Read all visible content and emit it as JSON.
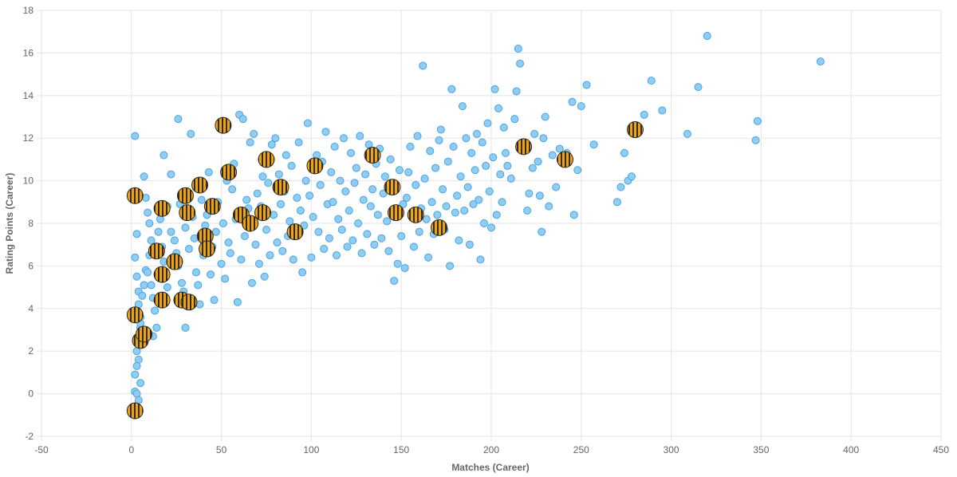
{
  "chart_data": {
    "type": "scatter",
    "title": "",
    "xlabel": "Matches (Career)",
    "ylabel": "Rating Points (Career)",
    "xlim": [
      -50,
      450
    ],
    "ylim": [
      -2,
      18
    ],
    "x_ticks": [
      -50,
      0,
      50,
      100,
      150,
      200,
      250,
      300,
      350,
      400,
      450
    ],
    "y_ticks": [
      -2,
      0,
      2,
      4,
      6,
      8,
      10,
      12,
      14,
      16,
      18
    ],
    "grid": true,
    "legend": "none",
    "colors": {
      "players": "#8fcdf5",
      "players_edge": "#4aa3df",
      "highlight_fill": "#f0a30a",
      "highlight_stripe": "#2b2b2b",
      "grid": "#e5e5e5",
      "text": "#666666"
    },
    "series": [
      {
        "points": [
          [
            2,
            12.1
          ],
          [
            3,
            7.5
          ],
          [
            2,
            6.4
          ],
          [
            3,
            5.5
          ],
          [
            4,
            4.8
          ],
          [
            4,
            4.2
          ],
          [
            5,
            3.6
          ],
          [
            5,
            3.1
          ],
          [
            6,
            2.8
          ],
          [
            6,
            2.3
          ],
          [
            4,
            1.6
          ],
          [
            3,
            1.3
          ],
          [
            2,
            0.9
          ],
          [
            2,
            0.1
          ],
          [
            3,
            0.0
          ],
          [
            4,
            -0.3
          ],
          [
            5,
            0.5
          ],
          [
            3,
            2.0
          ],
          [
            4,
            2.6
          ],
          [
            5,
            3.3
          ],
          [
            6,
            4.6
          ],
          [
            7,
            5.1
          ],
          [
            8,
            5.8
          ],
          [
            7,
            10.2
          ],
          [
            8,
            9.2
          ],
          [
            9,
            8.5
          ],
          [
            10,
            8.0
          ],
          [
            11,
            7.2
          ],
          [
            10,
            6.5
          ],
          [
            9,
            5.7
          ],
          [
            11,
            5.1
          ],
          [
            12,
            4.5
          ],
          [
            13,
            3.9
          ],
          [
            14,
            3.1
          ],
          [
            12,
            2.7
          ],
          [
            15,
            7.6
          ],
          [
            16,
            8.2
          ],
          [
            17,
            6.9
          ],
          [
            18,
            6.2
          ],
          [
            19,
            5.5
          ],
          [
            20,
            5.0
          ],
          [
            18,
            11.2
          ],
          [
            20,
            8.8
          ],
          [
            22,
            10.3
          ],
          [
            22,
            7.6
          ],
          [
            24,
            7.2
          ],
          [
            25,
            6.6
          ],
          [
            26,
            6.0
          ],
          [
            26,
            12.9
          ],
          [
            27,
            8.9
          ],
          [
            28,
            5.2
          ],
          [
            29,
            4.8
          ],
          [
            30,
            3.1
          ],
          [
            30,
            7.8
          ],
          [
            31,
            9.5
          ],
          [
            32,
            6.8
          ],
          [
            33,
            12.2
          ],
          [
            34,
            8.3
          ],
          [
            35,
            7.3
          ],
          [
            36,
            5.7
          ],
          [
            37,
            5.1
          ],
          [
            38,
            4.2
          ],
          [
            39,
            9.1
          ],
          [
            40,
            6.5
          ],
          [
            41,
            7.9
          ],
          [
            42,
            8.4
          ],
          [
            43,
            10.4
          ],
          [
            44,
            5.6
          ],
          [
            45,
            6.9
          ],
          [
            46,
            4.4
          ],
          [
            47,
            7.6
          ],
          [
            48,
            9.0
          ],
          [
            49,
            12.6
          ],
          [
            50,
            6.1
          ],
          [
            51,
            8.0
          ],
          [
            52,
            5.4
          ],
          [
            53,
            10.0
          ],
          [
            54,
            7.1
          ],
          [
            55,
            6.6
          ],
          [
            56,
            9.6
          ],
          [
            57,
            10.8
          ],
          [
            58,
            8.2
          ],
          [
            59,
            4.3
          ],
          [
            60,
            13.1
          ],
          [
            61,
            6.3
          ],
          [
            62,
            12.9
          ],
          [
            63,
            7.4
          ],
          [
            64,
            9.1
          ],
          [
            65,
            8.7
          ],
          [
            66,
            11.8
          ],
          [
            67,
            5.2
          ],
          [
            68,
            12.2
          ],
          [
            69,
            7.0
          ],
          [
            70,
            9.4
          ],
          [
            71,
            6.1
          ],
          [
            72,
            8.8
          ],
          [
            73,
            10.2
          ],
          [
            74,
            5.5
          ],
          [
            75,
            7.7
          ],
          [
            76,
            9.9
          ],
          [
            77,
            6.5
          ],
          [
            78,
            11.7
          ],
          [
            79,
            8.4
          ],
          [
            80,
            12.0
          ],
          [
            81,
            7.1
          ],
          [
            82,
            10.3
          ],
          [
            83,
            8.9
          ],
          [
            84,
            6.7
          ],
          [
            85,
            9.5
          ],
          [
            86,
            11.2
          ],
          [
            87,
            7.4
          ],
          [
            88,
            8.1
          ],
          [
            89,
            10.7
          ],
          [
            90,
            6.3
          ],
          [
            92,
            9.2
          ],
          [
            93,
            11.8
          ],
          [
            94,
            8.6
          ],
          [
            95,
            5.7
          ],
          [
            96,
            7.9
          ],
          [
            97,
            10.0
          ],
          [
            98,
            12.7
          ],
          [
            99,
            9.3
          ],
          [
            100,
            6.4
          ],
          [
            101,
            8.3
          ],
          [
            103,
            11.2
          ],
          [
            104,
            7.6
          ],
          [
            105,
            9.8
          ],
          [
            106,
            10.9
          ],
          [
            107,
            6.8
          ],
          [
            108,
            12.3
          ],
          [
            109,
            8.9
          ],
          [
            110,
            7.3
          ],
          [
            111,
            10.4
          ],
          [
            112,
            9.0
          ],
          [
            113,
            11.6
          ],
          [
            114,
            6.5
          ],
          [
            115,
            8.2
          ],
          [
            116,
            10.0
          ],
          [
            117,
            7.7
          ],
          [
            118,
            12.0
          ],
          [
            119,
            9.5
          ],
          [
            120,
            6.9
          ],
          [
            121,
            8.6
          ],
          [
            122,
            11.3
          ],
          [
            123,
            7.2
          ],
          [
            124,
            9.9
          ],
          [
            125,
            10.6
          ],
          [
            126,
            8.0
          ],
          [
            127,
            12.1
          ],
          [
            128,
            6.6
          ],
          [
            129,
            9.1
          ],
          [
            130,
            10.3
          ],
          [
            131,
            7.5
          ],
          [
            132,
            11.7
          ],
          [
            133,
            8.8
          ],
          [
            134,
            9.6
          ],
          [
            135,
            7.0
          ],
          [
            136,
            10.8
          ],
          [
            137,
            8.4
          ],
          [
            138,
            11.5
          ],
          [
            139,
            7.3
          ],
          [
            140,
            9.4
          ],
          [
            141,
            10.2
          ],
          [
            142,
            8.1
          ],
          [
            143,
            6.7
          ],
          [
            144,
            11.0
          ],
          [
            145,
            8.6
          ],
          [
            146,
            5.3
          ],
          [
            147,
            9.7
          ],
          [
            148,
            6.1
          ],
          [
            149,
            10.5
          ],
          [
            150,
            7.4
          ],
          [
            151,
            8.9
          ],
          [
            152,
            5.9
          ],
          [
            153,
            9.2
          ],
          [
            154,
            10.4
          ],
          [
            155,
            11.6
          ],
          [
            156,
            8.3
          ],
          [
            157,
            6.9
          ],
          [
            158,
            9.8
          ],
          [
            159,
            12.1
          ],
          [
            160,
            7.6
          ],
          [
            161,
            8.7
          ],
          [
            162,
            15.4
          ],
          [
            163,
            10.1
          ],
          [
            164,
            8.2
          ],
          [
            165,
            6.4
          ],
          [
            166,
            11.4
          ],
          [
            167,
            9.0
          ],
          [
            168,
            7.5
          ],
          [
            169,
            10.6
          ],
          [
            170,
            8.4
          ],
          [
            171,
            11.9
          ],
          [
            172,
            12.4
          ],
          [
            173,
            9.6
          ],
          [
            174,
            7.7
          ],
          [
            175,
            8.8
          ],
          [
            176,
            10.9
          ],
          [
            177,
            6.0
          ],
          [
            178,
            14.3
          ],
          [
            179,
            11.6
          ],
          [
            180,
            8.5
          ],
          [
            181,
            9.3
          ],
          [
            182,
            7.2
          ],
          [
            183,
            10.2
          ],
          [
            184,
            13.5
          ],
          [
            185,
            8.6
          ],
          [
            186,
            12.0
          ],
          [
            187,
            9.7
          ],
          [
            188,
            7.0
          ],
          [
            189,
            11.3
          ],
          [
            190,
            8.9
          ],
          [
            191,
            10.5
          ],
          [
            192,
            12.2
          ],
          [
            193,
            9.1
          ],
          [
            194,
            6.3
          ],
          [
            195,
            11.8
          ],
          [
            196,
            8.0
          ],
          [
            197,
            10.7
          ],
          [
            198,
            12.7
          ],
          [
            199,
            9.5
          ],
          [
            200,
            7.8
          ],
          [
            201,
            11.1
          ],
          [
            202,
            14.3
          ],
          [
            203,
            8.4
          ],
          [
            204,
            13.4
          ],
          [
            205,
            10.3
          ],
          [
            206,
            9.0
          ],
          [
            207,
            12.5
          ],
          [
            208,
            11.3
          ],
          [
            209,
            10.7
          ],
          [
            211,
            10.1
          ],
          [
            213,
            12.9
          ],
          [
            214,
            14.2
          ],
          [
            215,
            16.2
          ],
          [
            216,
            15.5
          ],
          [
            218,
            11.5
          ],
          [
            220,
            8.6
          ],
          [
            221,
            9.4
          ],
          [
            223,
            10.6
          ],
          [
            224,
            12.2
          ],
          [
            226,
            10.9
          ],
          [
            227,
            9.3
          ],
          [
            228,
            7.6
          ],
          [
            229,
            12.0
          ],
          [
            230,
            13.0
          ],
          [
            232,
            8.8
          ],
          [
            234,
            11.2
          ],
          [
            236,
            9.7
          ],
          [
            238,
            11.5
          ],
          [
            240,
            10.8
          ],
          [
            242,
            11.3
          ],
          [
            245,
            13.7
          ],
          [
            246,
            8.4
          ],
          [
            248,
            10.5
          ],
          [
            250,
            13.5
          ],
          [
            253,
            14.5
          ],
          [
            257,
            11.7
          ],
          [
            270,
            9.0
          ],
          [
            272,
            9.7
          ],
          [
            274,
            11.3
          ],
          [
            276,
            10.0
          ],
          [
            278,
            10.2
          ],
          [
            280,
            12.6
          ],
          [
            285,
            13.1
          ],
          [
            289,
            14.7
          ],
          [
            295,
            13.3
          ],
          [
            309,
            12.2
          ],
          [
            315,
            14.4
          ],
          [
            320,
            16.8
          ],
          [
            347,
            11.9
          ],
          [
            348,
            12.8
          ],
          [
            383,
            15.6
          ]
        ]
      },
      {
        "points": [
          [
            2,
            9.3
          ],
          [
            2,
            3.7
          ],
          [
            2,
            -0.8
          ],
          [
            5,
            2.5
          ],
          [
            7,
            2.8
          ],
          [
            14,
            6.7
          ],
          [
            17,
            5.6
          ],
          [
            17,
            8.7
          ],
          [
            17,
            4.4
          ],
          [
            24,
            6.2
          ],
          [
            28,
            4.4
          ],
          [
            30,
            9.3
          ],
          [
            31,
            8.5
          ],
          [
            32,
            4.3
          ],
          [
            38,
            9.8
          ],
          [
            41,
            7.4
          ],
          [
            42,
            6.8
          ],
          [
            45,
            8.8
          ],
          [
            51,
            12.6
          ],
          [
            54,
            10.4
          ],
          [
            61,
            8.4
          ],
          [
            66,
            8.0
          ],
          [
            73,
            8.5
          ],
          [
            75,
            11.0
          ],
          [
            83,
            9.7
          ],
          [
            91,
            7.6
          ],
          [
            102,
            10.7
          ],
          [
            134,
            11.2
          ],
          [
            145,
            9.7
          ],
          [
            147,
            8.5
          ],
          [
            158,
            8.4
          ],
          [
            171,
            7.8
          ],
          [
            218,
            11.6
          ],
          [
            241,
            11.0
          ],
          [
            280,
            12.4
          ]
        ]
      }
    ]
  }
}
